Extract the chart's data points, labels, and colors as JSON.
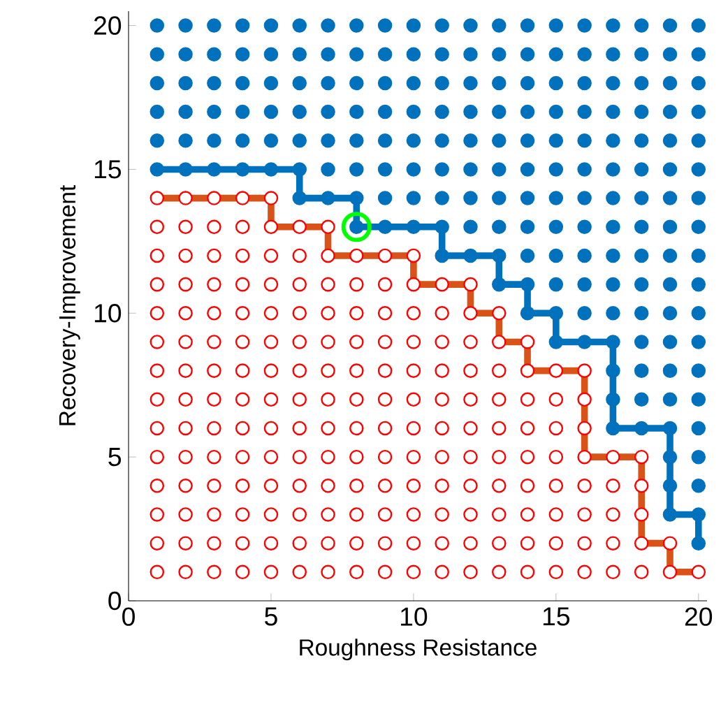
{
  "chart_data": {
    "type": "scatter",
    "xlabel": "Roughness Resistance",
    "ylabel": "Recovery-Improvement",
    "xlim": [
      0,
      20.3
    ],
    "ylim": [
      0,
      20.5
    ],
    "xticks": [
      0,
      5,
      10,
      15,
      20
    ],
    "yticks": [
      0,
      5,
      10,
      15,
      20
    ],
    "grid": false,
    "series": [
      {
        "type": "line",
        "color": "#d95319",
        "line_style": "solid",
        "marker": "none",
        "x": [
          1,
          2,
          3,
          4,
          5,
          5,
          6,
          7,
          7,
          8,
          9,
          10,
          10,
          11,
          12,
          12,
          13,
          13,
          14,
          14,
          15,
          16,
          16,
          16,
          16,
          17,
          18,
          18,
          18,
          18,
          19,
          19,
          20
        ],
        "values": [
          14,
          14,
          14,
          14,
          14,
          13,
          13,
          13,
          12,
          12,
          12,
          12,
          11,
          11,
          11,
          10,
          10,
          9,
          9,
          8,
          8,
          8,
          7,
          6,
          5,
          5,
          5,
          4,
          3,
          2,
          2,
          1,
          1
        ]
      },
      {
        "color": "#ff0000",
        "marker": "circle",
        "x": [
          1,
          1,
          1,
          1,
          1,
          1,
          1,
          1,
          1,
          1,
          1,
          1,
          1,
          1,
          2,
          2,
          2,
          2,
          2,
          2,
          2,
          2,
          2,
          2,
          2,
          2,
          2,
          2,
          3,
          3,
          3,
          3,
          3,
          3,
          3,
          3,
          3,
          3,
          3,
          3,
          3,
          3,
          4,
          4,
          4,
          4,
          4,
          4,
          4,
          4,
          4,
          4,
          4,
          4,
          4,
          4,
          5,
          5,
          5,
          5,
          5,
          5,
          5,
          5,
          5,
          5,
          5,
          5,
          5,
          5,
          6,
          6,
          6,
          6,
          6,
          6,
          6,
          6,
          6,
          6,
          6,
          6,
          6,
          7,
          7,
          7,
          7,
          7,
          7,
          7,
          7,
          7,
          7,
          7,
          7,
          7,
          8,
          8,
          8,
          8,
          8,
          8,
          8,
          8,
          8,
          8,
          8,
          8,
          9,
          9,
          9,
          9,
          9,
          9,
          9,
          9,
          9,
          9,
          9,
          9,
          10,
          10,
          10,
          10,
          10,
          10,
          10,
          10,
          10,
          10,
          10,
          10,
          11,
          11,
          11,
          11,
          11,
          11,
          11,
          11,
          11,
          11,
          11,
          12,
          12,
          12,
          12,
          12,
          12,
          12,
          12,
          12,
          12,
          12,
          13,
          13,
          13,
          13,
          13,
          13,
          13,
          13,
          13,
          13,
          14,
          14,
          14,
          14,
          14,
          14,
          14,
          14,
          14,
          15,
          15,
          15,
          15,
          15,
          15,
          15,
          15,
          16,
          16,
          16,
          16,
          16,
          16,
          16,
          16,
          17,
          17,
          17,
          17,
          17,
          18,
          18,
          18,
          18,
          18,
          19,
          19,
          20
        ],
        "values": [
          1,
          2,
          3,
          4,
          5,
          6,
          7,
          8,
          9,
          10,
          11,
          12,
          13,
          14,
          1,
          2,
          3,
          4,
          5,
          6,
          7,
          8,
          9,
          10,
          11,
          12,
          13,
          14,
          1,
          2,
          3,
          4,
          5,
          6,
          7,
          8,
          9,
          10,
          11,
          12,
          13,
          14,
          1,
          2,
          3,
          4,
          5,
          6,
          7,
          8,
          9,
          10,
          11,
          12,
          13,
          14,
          1,
          2,
          3,
          4,
          5,
          6,
          7,
          8,
          9,
          10,
          11,
          12,
          13,
          14,
          1,
          2,
          3,
          4,
          5,
          6,
          7,
          8,
          9,
          10,
          11,
          12,
          13,
          1,
          2,
          3,
          4,
          5,
          6,
          7,
          8,
          9,
          10,
          11,
          12,
          13,
          1,
          2,
          3,
          4,
          5,
          6,
          7,
          8,
          9,
          10,
          11,
          12,
          1,
          2,
          3,
          4,
          5,
          6,
          7,
          8,
          9,
          10,
          11,
          12,
          1,
          2,
          3,
          4,
          5,
          6,
          7,
          8,
          9,
          10,
          11,
          12,
          1,
          2,
          3,
          4,
          5,
          6,
          7,
          8,
          9,
          10,
          11,
          1,
          2,
          3,
          4,
          5,
          6,
          7,
          8,
          9,
          10,
          11,
          1,
          2,
          3,
          4,
          5,
          6,
          7,
          8,
          9,
          10,
          1,
          2,
          3,
          4,
          5,
          6,
          7,
          8,
          9,
          1,
          2,
          3,
          4,
          5,
          6,
          7,
          8,
          1,
          2,
          3,
          4,
          5,
          6,
          7,
          8,
          1,
          2,
          3,
          4,
          5,
          1,
          2,
          3,
          4,
          5,
          1,
          2,
          1
        ]
      },
      {
        "type": "line",
        "color": "#0072bd",
        "line_style": "solid",
        "marker": "none",
        "x": [
          1,
          2,
          3,
          4,
          5,
          6,
          6,
          7,
          8,
          8,
          9,
          10,
          11,
          11,
          12,
          13,
          13,
          14,
          14,
          15,
          15,
          16,
          17,
          17,
          17,
          17,
          18,
          19,
          19,
          19,
          19,
          20,
          20
        ],
        "values": [
          15,
          15,
          15,
          15,
          15,
          15,
          14,
          14,
          14,
          13,
          13,
          13,
          13,
          12,
          12,
          12,
          11,
          11,
          10,
          10,
          9,
          9,
          9,
          8,
          7,
          6,
          6,
          6,
          5,
          4,
          3,
          3,
          2
        ]
      },
      {
        "color": "#0072bd",
        "marker": "circle",
        "x": [
          1,
          1,
          1,
          1,
          1,
          1,
          2,
          2,
          2,
          2,
          2,
          2,
          3,
          3,
          3,
          3,
          3,
          3,
          4,
          4,
          4,
          4,
          4,
          4,
          5,
          5,
          5,
          5,
          5,
          5,
          6,
          6,
          6,
          6,
          6,
          6,
          6,
          7,
          7,
          7,
          7,
          7,
          7,
          7,
          8,
          8,
          8,
          8,
          8,
          8,
          8,
          8,
          9,
          9,
          9,
          9,
          9,
          9,
          9,
          9,
          10,
          10,
          10,
          10,
          10,
          10,
          10,
          10,
          11,
          11,
          11,
          11,
          11,
          11,
          11,
          11,
          11,
          12,
          12,
          12,
          12,
          12,
          12,
          12,
          12,
          12,
          13,
          13,
          13,
          13,
          13,
          13,
          13,
          13,
          13,
          13,
          14,
          14,
          14,
          14,
          14,
          14,
          14,
          14,
          14,
          14,
          14,
          15,
          15,
          15,
          15,
          15,
          15,
          15,
          15,
          15,
          15,
          15,
          15,
          16,
          16,
          16,
          16,
          16,
          16,
          16,
          16,
          16,
          16,
          16,
          16,
          17,
          17,
          17,
          17,
          17,
          17,
          17,
          17,
          17,
          17,
          17,
          17,
          17,
          17,
          17,
          18,
          18,
          18,
          18,
          18,
          18,
          18,
          18,
          18,
          18,
          18,
          18,
          18,
          18,
          18,
          19,
          19,
          19,
          19,
          19,
          19,
          19,
          19,
          19,
          19,
          19,
          19,
          19,
          19,
          19,
          19,
          19,
          19,
          20,
          20,
          20,
          20,
          20,
          20,
          20,
          20,
          20,
          20,
          20,
          20,
          20,
          20,
          20,
          20,
          20,
          20,
          20
        ],
        "values": [
          15,
          16,
          17,
          18,
          19,
          20,
          15,
          16,
          17,
          18,
          19,
          20,
          15,
          16,
          17,
          18,
          19,
          20,
          15,
          16,
          17,
          18,
          19,
          20,
          15,
          16,
          17,
          18,
          19,
          20,
          14,
          15,
          16,
          17,
          18,
          19,
          20,
          14,
          15,
          16,
          17,
          18,
          19,
          20,
          13,
          14,
          15,
          16,
          17,
          18,
          19,
          20,
          13,
          14,
          15,
          16,
          17,
          18,
          19,
          20,
          13,
          14,
          15,
          16,
          17,
          18,
          19,
          20,
          12,
          13,
          14,
          15,
          16,
          17,
          18,
          19,
          20,
          12,
          13,
          14,
          15,
          16,
          17,
          18,
          19,
          20,
          11,
          12,
          13,
          14,
          15,
          16,
          17,
          18,
          19,
          20,
          10,
          11,
          12,
          13,
          14,
          15,
          16,
          17,
          18,
          19,
          20,
          9,
          10,
          11,
          12,
          13,
          14,
          15,
          16,
          17,
          18,
          19,
          20,
          9,
          10,
          11,
          12,
          13,
          14,
          15,
          16,
          17,
          18,
          19,
          20,
          6,
          7,
          8,
          9,
          10,
          11,
          12,
          13,
          14,
          15,
          16,
          17,
          18,
          19,
          20,
          6,
          7,
          8,
          9,
          10,
          11,
          12,
          13,
          14,
          15,
          16,
          17,
          18,
          19,
          20,
          3,
          4,
          5,
          6,
          7,
          8,
          9,
          10,
          11,
          12,
          13,
          14,
          15,
          16,
          17,
          18,
          19,
          20,
          2,
          3,
          4,
          5,
          6,
          7,
          8,
          9,
          10,
          11,
          12,
          13,
          14,
          15,
          16,
          17,
          18,
          19,
          20
        ]
      },
      {
        "color": "#00ff00",
        "marker": "circle",
        "x": [
          8
        ],
        "values": [
          13
        ]
      }
    ]
  }
}
